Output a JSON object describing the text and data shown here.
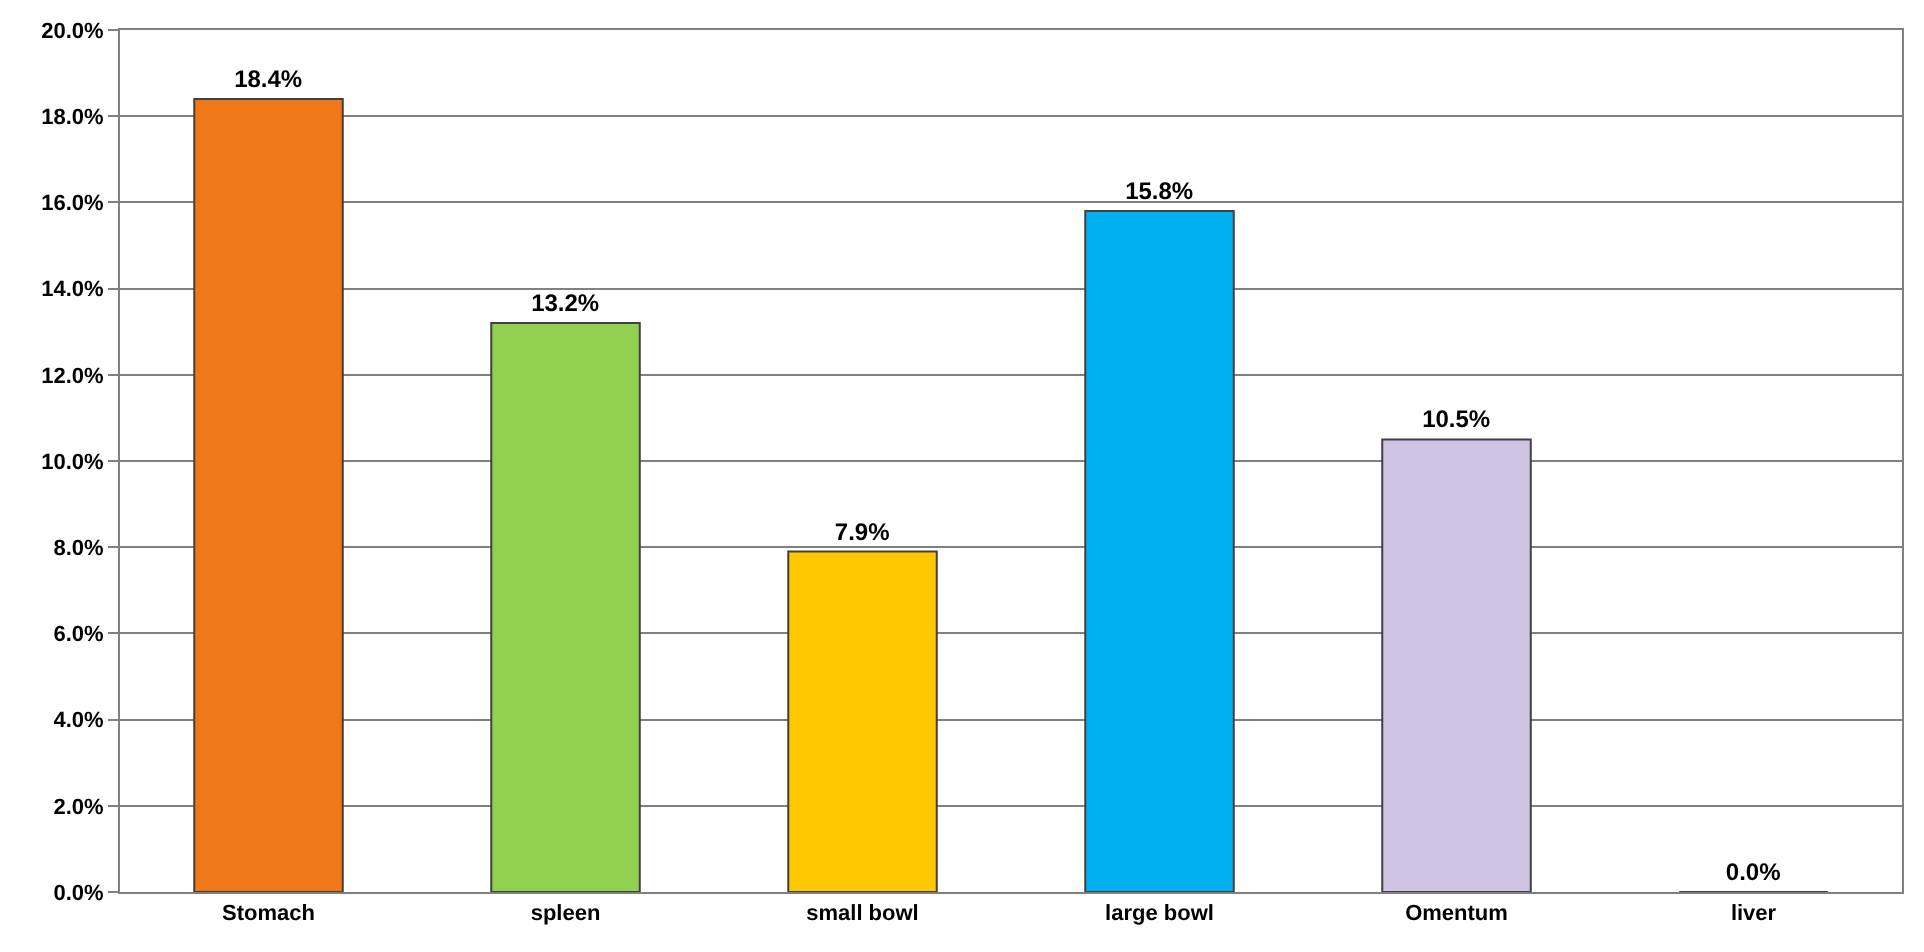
{
  "chart_data": {
    "type": "bar",
    "categories": [
      "Stomach",
      "spleen",
      "small bowl",
      "large bowl",
      "Omentum",
      "liver"
    ],
    "values": [
      18.4,
      13.2,
      7.9,
      15.8,
      10.5,
      0.0
    ],
    "colors": [
      "#f07818",
      "#92d050",
      "#ffc800",
      "#00b0f0",
      "#d0c4e4",
      "#404040"
    ],
    "value_labels": [
      "18.4%",
      "13.2%",
      "7.9%",
      "15.8%",
      "10.5%",
      "0.0%"
    ],
    "ylim": [
      0,
      20
    ],
    "yticks": [
      {
        "value": 0,
        "label": "0.0%"
      },
      {
        "value": 2,
        "label": "2.0%"
      },
      {
        "value": 4,
        "label": "4.0%"
      },
      {
        "value": 6,
        "label": "6.0%"
      },
      {
        "value": 8,
        "label": "8.0%"
      },
      {
        "value": 10,
        "label": "10.0%"
      },
      {
        "value": 12,
        "label": "12.0%"
      },
      {
        "value": 14,
        "label": "14.0%"
      },
      {
        "value": 16,
        "label": "16.0%"
      },
      {
        "value": 18,
        "label": "18.0%"
      },
      {
        "value": 20,
        "label": "20.0%"
      }
    ],
    "grid": "y",
    "legend": false
  }
}
